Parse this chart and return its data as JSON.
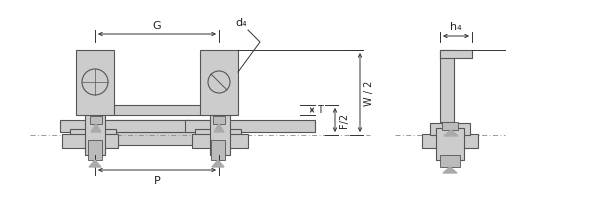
{
  "bg_color": "#ffffff",
  "part_color": "#cccccc",
  "part_edge_color": "#555555",
  "dim_line_color": "#333333",
  "centerline_color": "#888888",
  "text_color": "#222222",
  "fig_width": 6.0,
  "fig_height": 2.0,
  "labels": {
    "G": "G",
    "d4": "d₄",
    "T": "T",
    "F2": "F/2",
    "W2": "W / 2",
    "P": "P",
    "h4": "h₄"
  }
}
